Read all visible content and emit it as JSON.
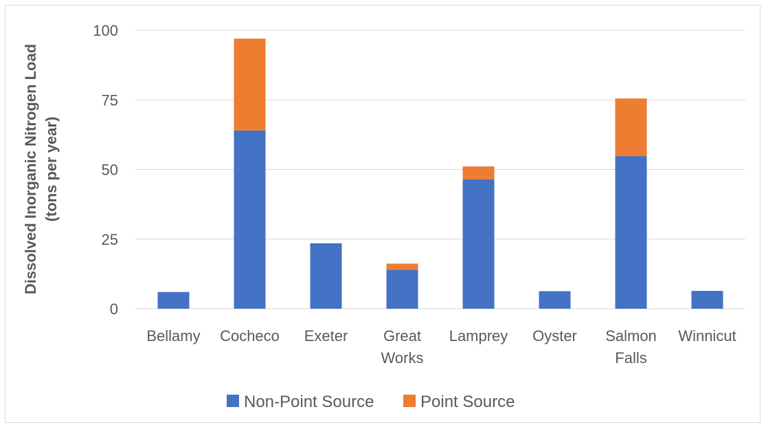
{
  "chart_data": {
    "type": "bar",
    "stacked": true,
    "title": "",
    "xlabel": "",
    "ylabel_lines": [
      "Dissolved Inorganic Nitrogen Load",
      "(tons per year)"
    ],
    "ylim": [
      0,
      100
    ],
    "yticks": [
      0,
      25,
      50,
      75,
      100
    ],
    "grid": true,
    "legend_position": "bottom",
    "categories": [
      [
        "Bellamy"
      ],
      [
        "Cocheco"
      ],
      [
        "Exeter"
      ],
      [
        "Great",
        "Works"
      ],
      [
        "Lamprey"
      ],
      [
        "Oyster"
      ],
      [
        "Salmon",
        "Falls"
      ],
      [
        "Winnicut"
      ]
    ],
    "series": [
      {
        "name": "Non-Point Source",
        "color": "#4472c4",
        "values": [
          6,
          64,
          23.5,
          14,
          46.5,
          6.3,
          54.8,
          6.4
        ]
      },
      {
        "name": "Point Source",
        "color": "#ed7d31",
        "values": [
          0,
          33,
          0,
          2.2,
          4.6,
          0,
          20.7,
          0
        ]
      }
    ]
  }
}
